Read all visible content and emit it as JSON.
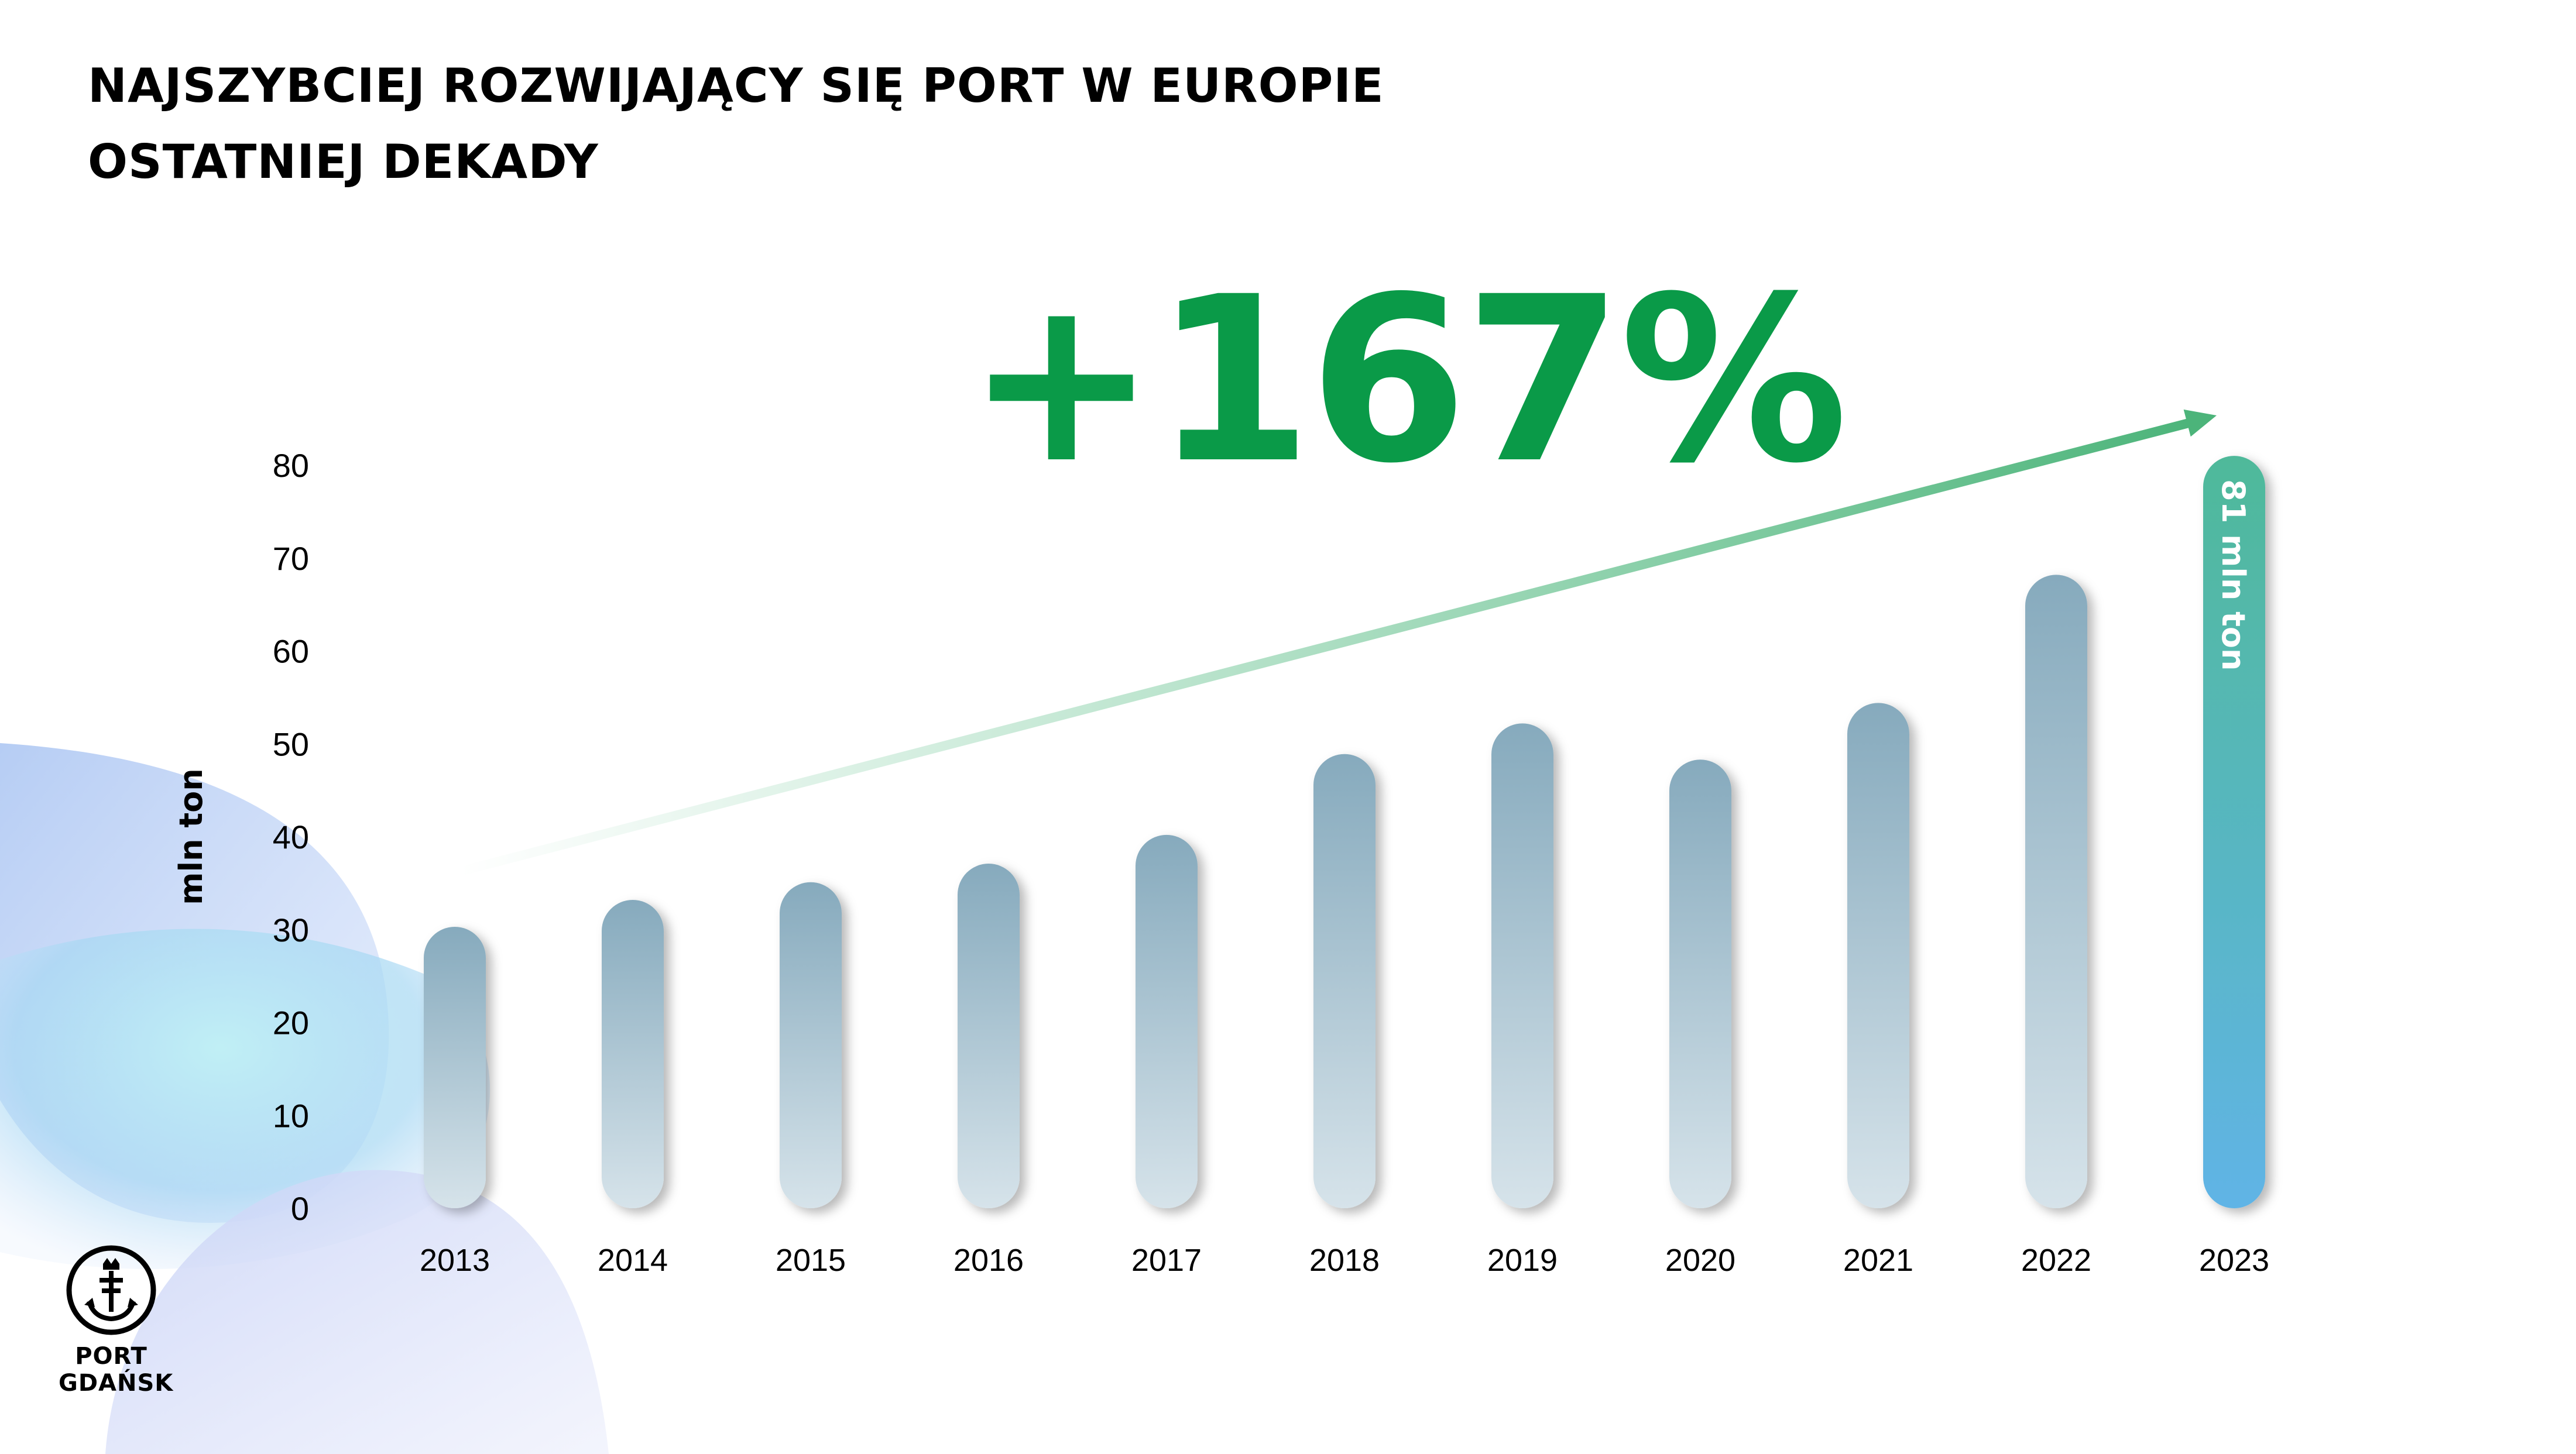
{
  "title": {
    "line1": "NAJSZYBCIEJ ROZWIJAJĄCY SIĘ PORT W EUROPIE",
    "line2": "OSTATNIEJ DEKADY"
  },
  "headline": "+167%",
  "logo": {
    "line1": "PORT",
    "line2": "GDAŃSK"
  },
  "colors": {
    "accent": "#0a9a48",
    "bar_top": "#86aabd",
    "bar_bottom": "#d6e3ea",
    "last_bar_top": "#4fb99a",
    "last_bar_bottom": "#60b4e6"
  },
  "chart_data": {
    "type": "bar",
    "categories": [
      "2013",
      "2014",
      "2015",
      "2016",
      "2017",
      "2018",
      "2019",
      "2020",
      "2021",
      "2022",
      "2023"
    ],
    "values": [
      30.3,
      33.2,
      35.1,
      37.1,
      40.2,
      48.9,
      52.2,
      48.3,
      54.4,
      68.2,
      81
    ],
    "ylabel": "mln ton",
    "ylim": [
      0,
      80
    ],
    "yticks": [
      0,
      10,
      20,
      30,
      40,
      50,
      60,
      70,
      80
    ],
    "grid": false,
    "highlight_label": "81 mln ton",
    "trend_arrow": true
  }
}
